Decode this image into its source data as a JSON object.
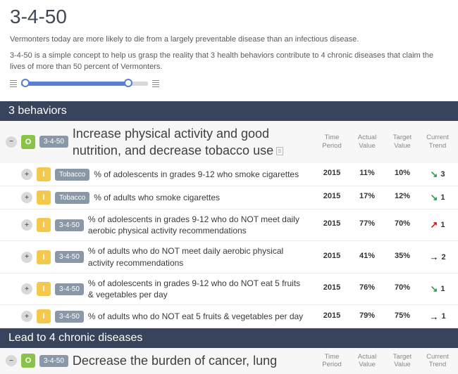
{
  "page": {
    "title": "3-4-50",
    "intro1": "Vermonters today are more likely to die from a largely preventable disease than an infectious disease.",
    "intro2": "3-4-50 is a simple concept to help us grasp the reality that 3 health behaviors contribute to 4 chronic diseases that claim the lives of more than 50 percent of Vermonters."
  },
  "columns": {
    "c1": "Time Period",
    "c2": "Actual Value",
    "c3": "Target Value",
    "c4": "Current Trend"
  },
  "section1": {
    "title": "3 behaviors",
    "head": {
      "badge": "O",
      "tag": "3-4-50",
      "desc": "Increase physical activity and good nutrition, and decrease tobacco use"
    },
    "rows": [
      {
        "badge": "I",
        "tag": "Tobacco",
        "desc": "% of adolescents in grades 9-12 who smoke cigarettes",
        "period": "2015",
        "actual": "11%",
        "target": "10%",
        "arrow": "↘",
        "arrowColor": "#2e9c4e",
        "n": "3"
      },
      {
        "badge": "I",
        "tag": "Tobacco",
        "desc": "% of adults who smoke cigarettes",
        "period": "2015",
        "actual": "17%",
        "target": "12%",
        "arrow": "↘",
        "arrowColor": "#2e9c4e",
        "n": "1"
      },
      {
        "badge": "I",
        "tag": "3-4-50",
        "desc": "% of adolescents in grades 9-12 who do NOT meet daily aerobic physical activity recommendations",
        "period": "2015",
        "actual": "77%",
        "target": "70%",
        "arrow": "↗",
        "arrowColor": "#d11a1a",
        "n": "1"
      },
      {
        "badge": "I",
        "tag": "3-4-50",
        "desc": "% of adults who do NOT meet daily aerobic physical activity recommendations",
        "period": "2015",
        "actual": "41%",
        "target": "35%",
        "arrow": "→",
        "arrowColor": "#000000",
        "n": "2"
      },
      {
        "badge": "I",
        "tag": "3-4-50",
        "desc": "% of adolescents in grades 9-12 who do NOT eat 5 fruits & vegetables per day",
        "period": "2015",
        "actual": "76%",
        "target": "70%",
        "arrow": "↘",
        "arrowColor": "#2e9c4e",
        "n": "1"
      },
      {
        "badge": "I",
        "tag": "3-4-50",
        "desc": "% of adults who do NOT eat 5 fruits & vegetables per day",
        "period": "2015",
        "actual": "79%",
        "target": "75%",
        "arrow": "→",
        "arrowColor": "#000000",
        "n": "1"
      }
    ]
  },
  "section2": {
    "title": "Lead to 4 chronic diseases",
    "head": {
      "badge": "O",
      "tag": "3-4-50",
      "desc": "Decrease the burden of cancer, lung"
    }
  },
  "style": {
    "sectionHeaderBg": "#37445b",
    "badgeGreen": "#8bc34a",
    "badgeYellow": "#f2c94c",
    "tagBg": "#8a97a7",
    "sliderFill": "#5b7ecf"
  }
}
